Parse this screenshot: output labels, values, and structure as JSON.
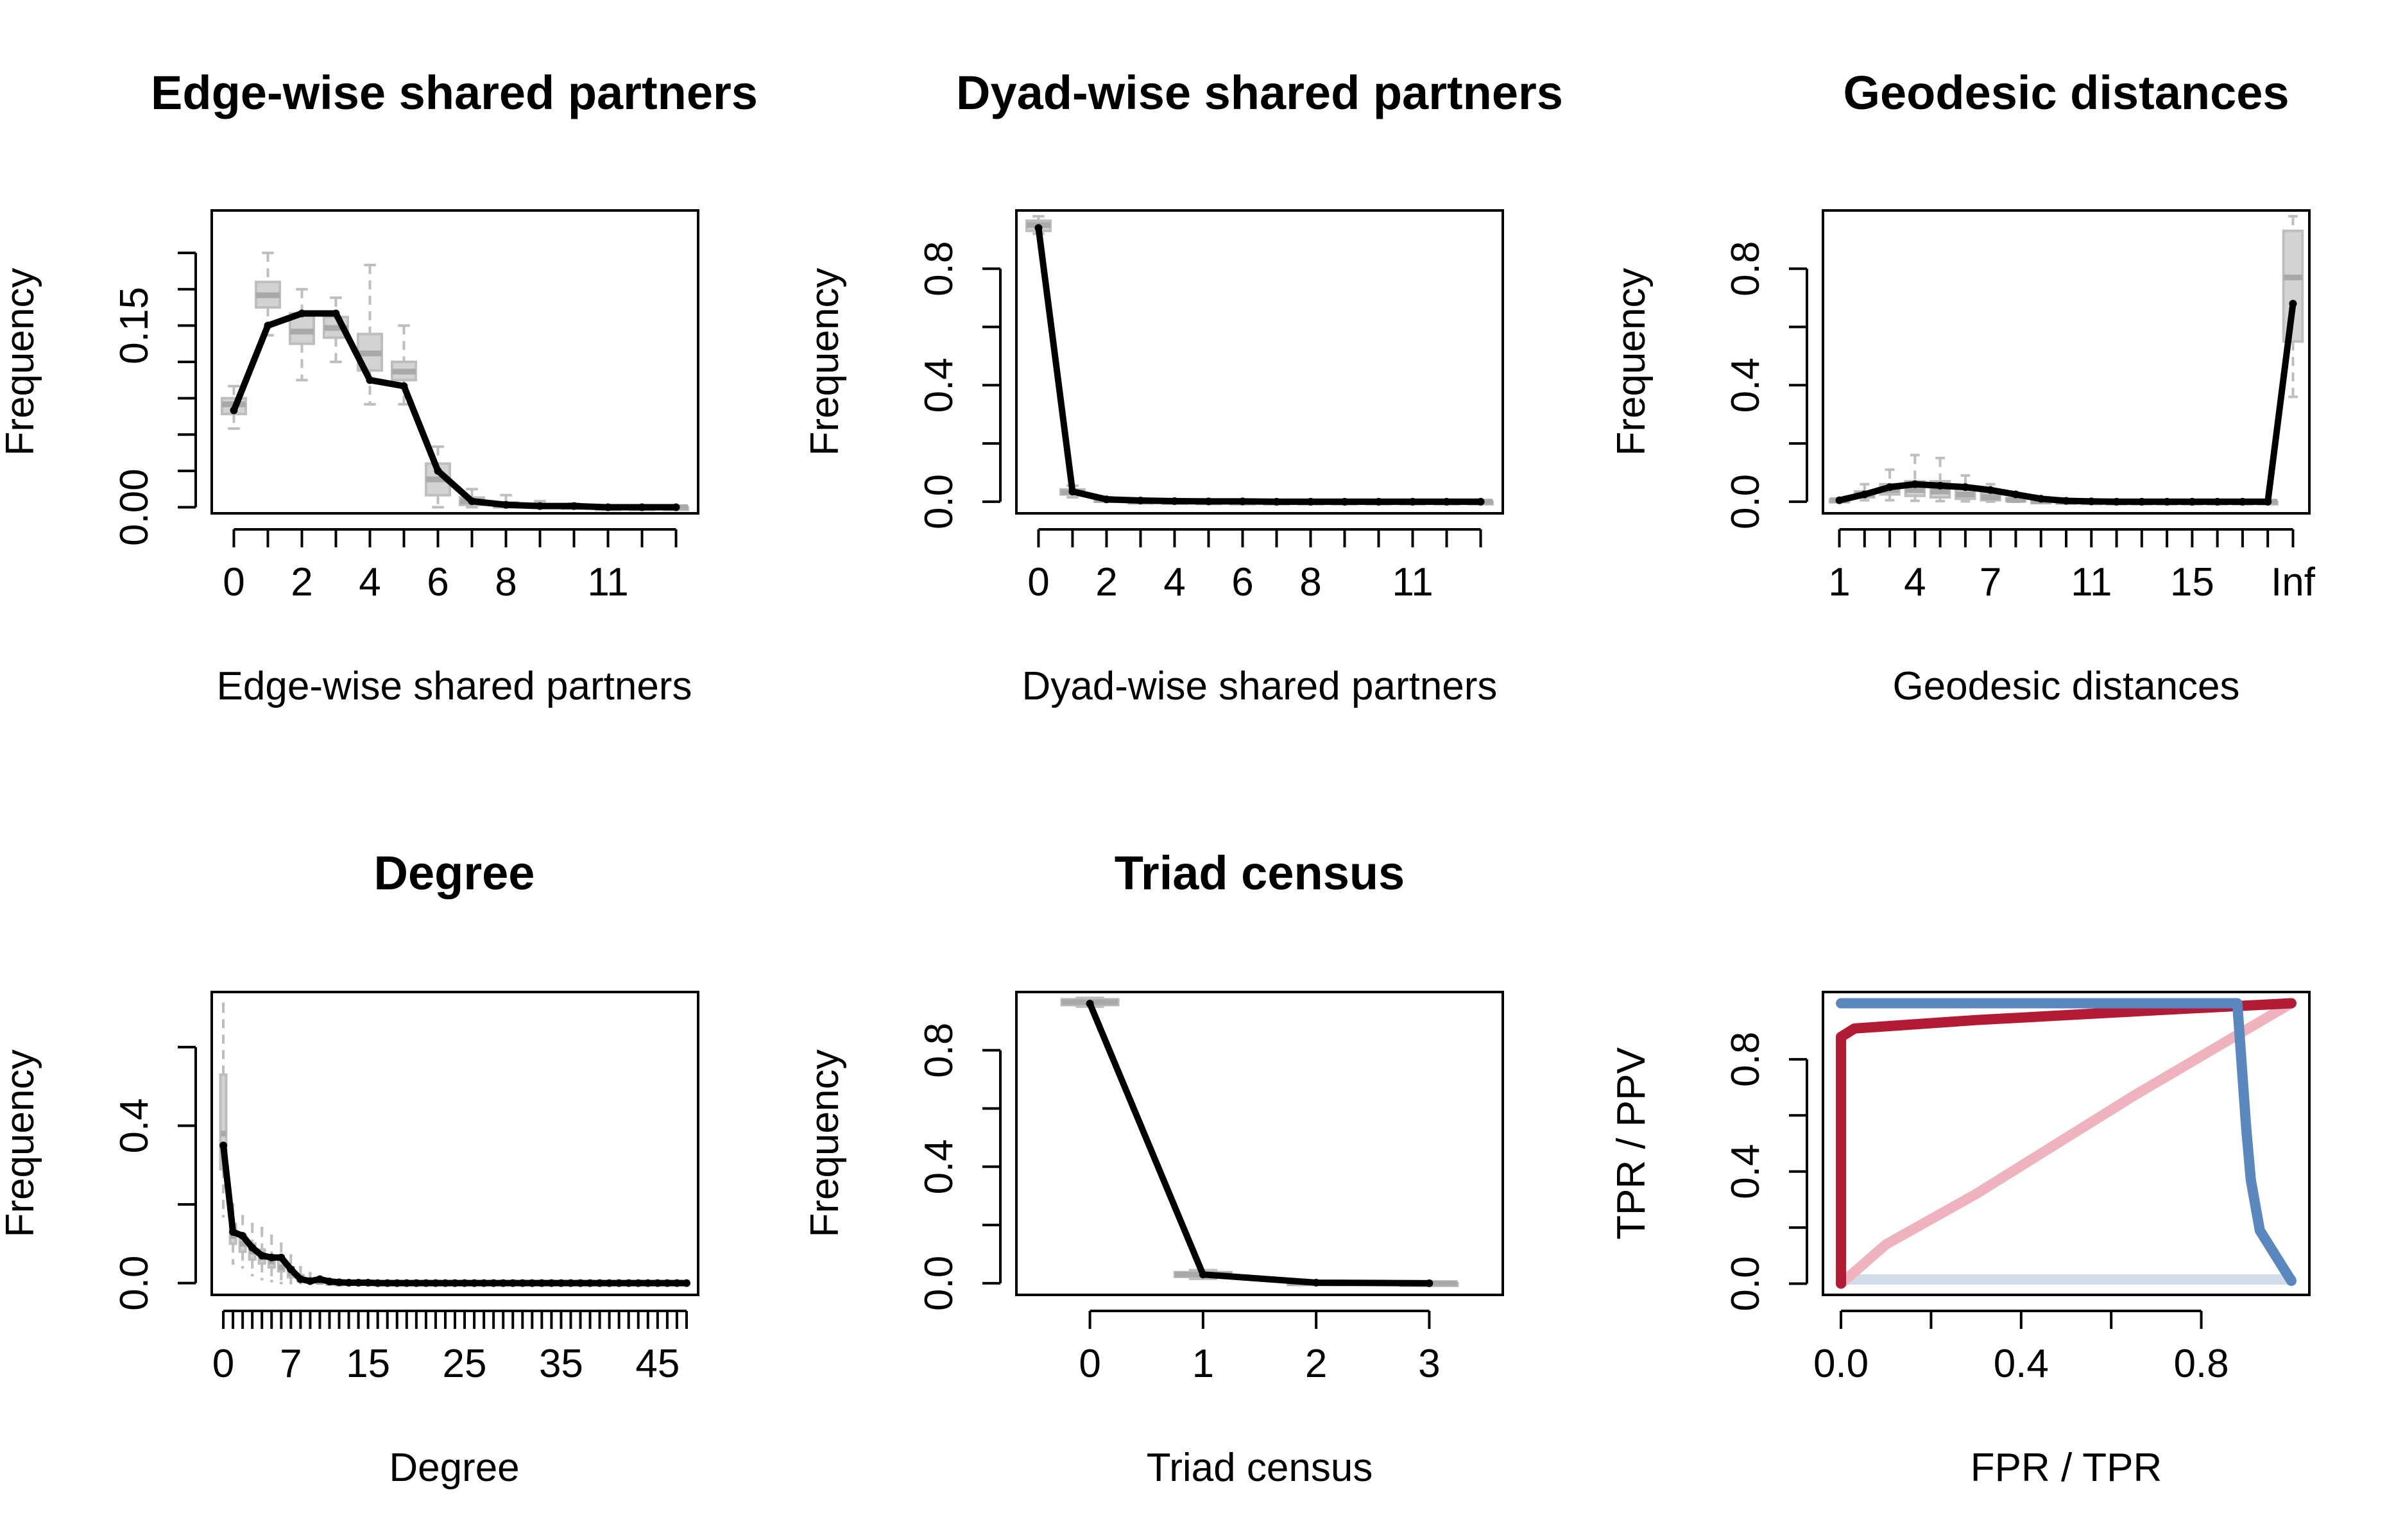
{
  "figure": {
    "background": "#ffffff"
  },
  "style": {
    "box_color": "#bebebe",
    "box_fill": "#d3d3d3",
    "line_color": "#000000"
  },
  "chart_data": [
    {
      "id": "esp",
      "type": "line",
      "title": "Edge-wise shared partners",
      "xlabel": "Edge-wise shared partners",
      "ylabel": "Frequency",
      "x": [
        0,
        1,
        2,
        3,
        4,
        5,
        6,
        7,
        8,
        9,
        10,
        11,
        12,
        13
      ],
      "xlim": [
        -0.65,
        13.65
      ],
      "ylim": [
        -0.005,
        0.245
      ],
      "xticks": [
        0,
        1,
        2,
        3,
        4,
        5,
        6,
        7,
        8,
        9,
        10,
        11,
        12,
        13
      ],
      "xtick_labels": [
        "0",
        "",
        "2",
        "",
        "4",
        "",
        "6",
        "",
        "8",
        "",
        "",
        "11",
        "",
        ""
      ],
      "yticks": [
        0,
        0.03,
        0.06,
        0.09,
        0.12,
        0.15,
        0.18,
        0.21
      ],
      "ytick_labels": [
        "0.00",
        "",
        "",
        "",
        "",
        "0.15",
        "",
        ""
      ],
      "observed": [
        0.08,
        0.15,
        0.16,
        0.16,
        0.105,
        0.1,
        0.03,
        0.005,
        0.002,
        0.001,
        0.001,
        0,
        0,
        0
      ],
      "boxes": [
        {
          "x": 0,
          "q1": 0.077,
          "med": 0.085,
          "q3": 0.09,
          "lo": 0.065,
          "hi": 0.1
        },
        {
          "x": 1,
          "q1": 0.165,
          "med": 0.175,
          "q3": 0.186,
          "lo": 0.142,
          "hi": 0.21
        },
        {
          "x": 2,
          "q1": 0.135,
          "med": 0.145,
          "q3": 0.16,
          "lo": 0.105,
          "hi": 0.18
        },
        {
          "x": 3,
          "q1": 0.14,
          "med": 0.148,
          "q3": 0.157,
          "lo": 0.12,
          "hi": 0.173
        },
        {
          "x": 4,
          "q1": 0.113,
          "med": 0.127,
          "q3": 0.143,
          "lo": 0.085,
          "hi": 0.2
        },
        {
          "x": 5,
          "q1": 0.105,
          "med": 0.112,
          "q3": 0.12,
          "lo": 0.085,
          "hi": 0.15
        },
        {
          "x": 6,
          "q1": 0.01,
          "med": 0.023,
          "q3": 0.036,
          "lo": 0,
          "hi": 0.05
        },
        {
          "x": 7,
          "q1": 0.002,
          "med": 0.005,
          "q3": 0.008,
          "lo": 0,
          "hi": 0.015
        },
        {
          "x": 8,
          "q1": 0,
          "med": 0.002,
          "q3": 0.004,
          "lo": 0,
          "hi": 0.01
        },
        {
          "x": 9,
          "q1": 0,
          "med": 0.001,
          "q3": 0.002,
          "lo": 0,
          "hi": 0.005
        },
        {
          "x": 10,
          "q1": 0,
          "med": 0.0005,
          "q3": 0.001,
          "lo": 0,
          "hi": 0.003
        },
        {
          "x": 11,
          "q1": 0,
          "med": 0,
          "q3": 0,
          "lo": 0,
          "hi": 0.001
        },
        {
          "x": 12,
          "q1": 0,
          "med": 0,
          "q3": 0,
          "lo": 0,
          "hi": 0
        },
        {
          "x": 13,
          "q1": 0,
          "med": 0,
          "q3": 0,
          "lo": 0,
          "hi": 0
        }
      ]
    },
    {
      "id": "dsp",
      "type": "line",
      "title": "Dyad-wise shared partners",
      "xlabel": "Dyad-wise shared partners",
      "ylabel": "Frequency",
      "x": [
        0,
        1,
        2,
        3,
        4,
        5,
        6,
        7,
        8,
        9,
        10,
        11,
        12,
        13
      ],
      "xlim": [
        -0.65,
        13.65
      ],
      "ylim": [
        -0.04,
        1.0
      ],
      "xticks": [
        0,
        1,
        2,
        3,
        4,
        5,
        6,
        7,
        8,
        9,
        10,
        11,
        12,
        13
      ],
      "xtick_labels": [
        "0",
        "",
        "2",
        "",
        "4",
        "",
        "6",
        "",
        "8",
        "",
        "",
        "11",
        "",
        ""
      ],
      "yticks": [
        0,
        0.2,
        0.4,
        0.6,
        0.8
      ],
      "ytick_labels": [
        "0.0",
        "",
        "0.4",
        "",
        "0.8"
      ],
      "observed": [
        0.94,
        0.035,
        0.008,
        0.004,
        0.002,
        0.001,
        0.001,
        0,
        0,
        0,
        0,
        0,
        0,
        0
      ],
      "boxes": [
        {
          "x": 0,
          "q1": 0.93,
          "med": 0.95,
          "q3": 0.965,
          "lo": 0.92,
          "hi": 0.98
        },
        {
          "x": 1,
          "q1": 0.025,
          "med": 0.032,
          "q3": 0.042,
          "lo": 0.015,
          "hi": 0.055
        },
        {
          "x": 2,
          "q1": 0.004,
          "med": 0.006,
          "q3": 0.009,
          "lo": 0.001,
          "hi": 0.015
        },
        {
          "x": 3,
          "q1": 0.001,
          "med": 0.002,
          "q3": 0.003,
          "lo": 0,
          "hi": 0.006
        },
        {
          "x": 4,
          "q1": 0,
          "med": 0.001,
          "q3": 0.002,
          "lo": 0,
          "hi": 0.003
        },
        {
          "x": 5,
          "q1": 0,
          "med": 0,
          "q3": 0.001,
          "lo": 0,
          "hi": 0.002
        },
        {
          "x": 6,
          "q1": 0,
          "med": 0,
          "q3": 0,
          "lo": 0,
          "hi": 0.001
        },
        {
          "x": 7,
          "q1": 0,
          "med": 0,
          "q3": 0,
          "lo": 0,
          "hi": 0
        },
        {
          "x": 8,
          "q1": 0,
          "med": 0,
          "q3": 0,
          "lo": 0,
          "hi": 0
        },
        {
          "x": 9,
          "q1": 0,
          "med": 0,
          "q3": 0,
          "lo": 0,
          "hi": 0
        },
        {
          "x": 10,
          "q1": 0,
          "med": 0,
          "q3": 0,
          "lo": 0,
          "hi": 0
        },
        {
          "x": 11,
          "q1": 0,
          "med": 0,
          "q3": 0,
          "lo": 0,
          "hi": 0
        },
        {
          "x": 12,
          "q1": 0,
          "med": 0,
          "q3": 0,
          "lo": 0,
          "hi": 0
        },
        {
          "x": 13,
          "q1": 0,
          "med": 0,
          "q3": 0,
          "lo": 0,
          "hi": 0
        }
      ]
    },
    {
      "id": "geo",
      "type": "line",
      "title": "Geodesic distances",
      "xlabel": "Geodesic distances",
      "ylabel": "Frequency",
      "x": [
        1,
        2,
        3,
        4,
        5,
        6,
        7,
        8,
        9,
        10,
        11,
        12,
        13,
        14,
        15,
        16,
        17,
        18,
        19
      ],
      "xlim": [
        0.35,
        19.65
      ],
      "ylim": [
        -0.04,
        1.0
      ],
      "xticks": [
        1,
        2,
        3,
        4,
        5,
        6,
        7,
        8,
        9,
        10,
        11,
        12,
        13,
        14,
        15,
        16,
        17,
        18,
        19
      ],
      "xtick_labels": [
        "1",
        "",
        "",
        "4",
        "",
        "",
        "7",
        "",
        "",
        "",
        "11",
        "",
        "",
        "",
        "15",
        "",
        "",
        "",
        "Inf"
      ],
      "yticks": [
        0,
        0.2,
        0.4,
        0.6,
        0.8
      ],
      "ytick_labels": [
        "0.0",
        "",
        "0.4",
        "",
        "0.8"
      ],
      "observed": [
        0.005,
        0.025,
        0.05,
        0.06,
        0.055,
        0.05,
        0.04,
        0.025,
        0.01,
        0.003,
        0.001,
        0,
        0,
        0,
        0,
        0,
        0,
        0,
        0.68
      ],
      "boxes": [
        {
          "x": 1,
          "q1": 0.003,
          "med": 0.005,
          "q3": 0.007,
          "lo": 0.002,
          "hi": 0.009
        },
        {
          "x": 2,
          "q1": 0.015,
          "med": 0.025,
          "q3": 0.035,
          "lo": 0.005,
          "hi": 0.06
        },
        {
          "x": 3,
          "q1": 0.025,
          "med": 0.04,
          "q3": 0.06,
          "lo": 0.005,
          "hi": 0.11
        },
        {
          "x": 4,
          "q1": 0.02,
          "med": 0.04,
          "q3": 0.07,
          "lo": 0.003,
          "hi": 0.16
        },
        {
          "x": 5,
          "q1": 0.015,
          "med": 0.035,
          "q3": 0.07,
          "lo": 0.002,
          "hi": 0.15
        },
        {
          "x": 6,
          "q1": 0.01,
          "med": 0.025,
          "q3": 0.05,
          "lo": 0.001,
          "hi": 0.09
        },
        {
          "x": 7,
          "q1": 0.005,
          "med": 0.015,
          "q3": 0.03,
          "lo": 0,
          "hi": 0.06
        },
        {
          "x": 8,
          "q1": 0.002,
          "med": 0.006,
          "q3": 0.012,
          "lo": 0,
          "hi": 0.025
        },
        {
          "x": 9,
          "q1": 0,
          "med": 0.002,
          "q3": 0.004,
          "lo": 0,
          "hi": 0.01
        },
        {
          "x": 10,
          "q1": 0,
          "med": 0.001,
          "q3": 0.002,
          "lo": 0,
          "hi": 0.004
        },
        {
          "x": 11,
          "q1": 0,
          "med": 0,
          "q3": 0.001,
          "lo": 0,
          "hi": 0.002
        },
        {
          "x": 12,
          "q1": 0,
          "med": 0,
          "q3": 0,
          "lo": 0,
          "hi": 0
        },
        {
          "x": 13,
          "q1": 0,
          "med": 0,
          "q3": 0,
          "lo": 0,
          "hi": 0
        },
        {
          "x": 14,
          "q1": 0,
          "med": 0,
          "q3": 0,
          "lo": 0,
          "hi": 0
        },
        {
          "x": 15,
          "q1": 0,
          "med": 0,
          "q3": 0,
          "lo": 0,
          "hi": 0
        },
        {
          "x": 16,
          "q1": 0,
          "med": 0,
          "q3": 0,
          "lo": 0,
          "hi": 0
        },
        {
          "x": 17,
          "q1": 0,
          "med": 0,
          "q3": 0,
          "lo": 0,
          "hi": 0
        },
        {
          "x": 18,
          "q1": 0,
          "med": 0,
          "q3": 0,
          "lo": 0,
          "hi": 0
        },
        {
          "x": 19,
          "q1": 0.55,
          "med": 0.77,
          "q3": 0.93,
          "lo": 0.36,
          "hi": 0.98
        }
      ]
    },
    {
      "id": "deg",
      "type": "line",
      "title": "Degree",
      "xlabel": "Degree",
      "ylabel": "Frequency",
      "x_from": 0,
      "x_to": 48,
      "xlim": [
        -1.2,
        49.2
      ],
      "ylim": [
        -0.03,
        0.74
      ],
      "xticks": [
        0,
        1,
        2,
        3,
        4,
        5,
        6,
        7,
        8,
        9,
        10,
        11,
        12,
        13,
        14,
        15,
        16,
        17,
        18,
        19,
        20,
        21,
        22,
        23,
        24,
        25,
        26,
        27,
        28,
        29,
        30,
        31,
        32,
        33,
        34,
        35,
        36,
        37,
        38,
        39,
        40,
        41,
        42,
        43,
        44,
        45,
        46,
        47,
        48
      ],
      "xtick_labels": [
        "0",
        "",
        "",
        "",
        "",
        "",
        "",
        "7",
        "",
        "",
        "",
        "",
        "",
        "",
        "",
        "15",
        "",
        "",
        "",
        "",
        "",
        "",
        "",
        "",
        "",
        "25",
        "",
        "",
        "",
        "",
        "",
        "",
        "",
        "",
        "",
        "35",
        "",
        "",
        "",
        "",
        "",
        "",
        "",
        "",
        "",
        "45",
        "",
        "",
        ""
      ],
      "yticks": [
        0,
        0.2,
        0.4,
        0.6
      ],
      "ytick_labels": [
        "0.0",
        "",
        "0.4",
        ""
      ],
      "observed": [
        0.35,
        0.13,
        0.12,
        0.09,
        0.07,
        0.065,
        0.065,
        0.035,
        0.01,
        0.005,
        0.01,
        0.004,
        0.002,
        0.001,
        0.001,
        0.001
      ],
      "boxes": [
        {
          "x": 0,
          "q1": 0.29,
          "med": 0.38,
          "q3": 0.53,
          "lo": 0.17,
          "hi": 0.71
        },
        {
          "x": 1,
          "q1": 0.1,
          "med": 0.12,
          "q3": 0.15,
          "lo": 0.05,
          "hi": 0.2
        },
        {
          "x": 2,
          "q1": 0.08,
          "med": 0.1,
          "q3": 0.12,
          "lo": 0.04,
          "hi": 0.17
        },
        {
          "x": 3,
          "q1": 0.06,
          "med": 0.08,
          "q3": 0.1,
          "lo": 0.02,
          "hi": 0.15
        },
        {
          "x": 4,
          "q1": 0.05,
          "med": 0.065,
          "q3": 0.085,
          "lo": 0.01,
          "hi": 0.14
        },
        {
          "x": 5,
          "q1": 0.04,
          "med": 0.055,
          "q3": 0.07,
          "lo": 0.005,
          "hi": 0.12
        },
        {
          "x": 6,
          "q1": 0.03,
          "med": 0.04,
          "q3": 0.06,
          "lo": 0,
          "hi": 0.1
        },
        {
          "x": 7,
          "q1": 0.015,
          "med": 0.025,
          "q3": 0.04,
          "lo": 0,
          "hi": 0.07
        },
        {
          "x": 8,
          "q1": 0.005,
          "med": 0.012,
          "q3": 0.02,
          "lo": 0,
          "hi": 0.04
        },
        {
          "x": 9,
          "q1": 0.002,
          "med": 0.006,
          "q3": 0.01,
          "lo": 0,
          "hi": 0.025
        },
        {
          "x": 10,
          "q1": 0,
          "med": 0.003,
          "q3": 0.006,
          "lo": 0,
          "hi": 0.015
        },
        {
          "x": 11,
          "q1": 0,
          "med": 0.001,
          "q3": 0.003,
          "lo": 0,
          "hi": 0.008
        },
        {
          "x": 12,
          "q1": 0,
          "med": 0,
          "q3": 0.001,
          "lo": 0,
          "hi": 0.004
        }
      ]
    },
    {
      "id": "triad",
      "type": "line",
      "title": "Triad census",
      "xlabel": "Triad census",
      "ylabel": "Frequency",
      "x": [
        0,
        1,
        2,
        3
      ],
      "xlim": [
        -0.65,
        3.65
      ],
      "ylim": [
        -0.04,
        1.0
      ],
      "xticks": [
        0,
        1,
        2,
        3
      ],
      "xtick_labels": [
        "0",
        "1",
        "2",
        "3"
      ],
      "yticks": [
        0,
        0.2,
        0.4,
        0.6,
        0.8
      ],
      "ytick_labels": [
        "0.0",
        "",
        "0.4",
        "",
        "0.8"
      ],
      "observed": [
        0.96,
        0.03,
        0.002,
        0.0
      ],
      "boxes": [
        {
          "x": 0,
          "q1": 0.955,
          "med": 0.965,
          "q3": 0.975,
          "lo": 0.95,
          "hi": 0.98
        },
        {
          "x": 1,
          "q1": 0.022,
          "med": 0.03,
          "q3": 0.038,
          "lo": 0.015,
          "hi": 0.045
        },
        {
          "x": 2,
          "q1": 0.001,
          "med": 0.002,
          "q3": 0.003,
          "lo": 0,
          "hi": 0.005
        },
        {
          "x": 3,
          "q1": 0,
          "med": 0,
          "q3": 0,
          "lo": 0,
          "hi": 0
        }
      ]
    },
    {
      "id": "roc",
      "type": "line",
      "title": "",
      "xlabel": "FPR / TPR",
      "ylabel": "TPR / PPV",
      "xlim": [
        -0.04,
        1.04
      ],
      "ylim": [
        -0.04,
        1.04
      ],
      "xticks": [
        0,
        0.2,
        0.4,
        0.6,
        0.8
      ],
      "xtick_labels": [
        "0.0",
        "",
        "0.4",
        "",
        "0.8"
      ],
      "yticks": [
        0,
        0.2,
        0.4,
        0.6,
        0.8
      ],
      "ytick_labels": [
        "0.0",
        "",
        "0.4",
        "",
        "0.8"
      ],
      "series": [
        {
          "color": "#d3dde9",
          "x": [
            0,
            1
          ],
          "y": [
            0.015,
            0.015
          ]
        },
        {
          "color": "#eeb3bc",
          "x": [
            0,
            0.1,
            0.3,
            0.65,
            1.0
          ],
          "y": [
            0,
            0.14,
            0.32,
            0.67,
            1.0
          ]
        },
        {
          "color": "#b11c34",
          "x": [
            0,
            0,
            0.03,
            0.3,
            0.7,
            1.0
          ],
          "y": [
            0,
            0.88,
            0.91,
            0.94,
            0.975,
            1.0
          ]
        },
        {
          "color": "#5b87bf",
          "x": [
            0,
            0.88,
            0.9,
            0.91,
            0.93,
            1.0
          ],
          "y": [
            1.0,
            1.0,
            0.55,
            0.37,
            0.19,
            0.01
          ]
        }
      ]
    }
  ]
}
